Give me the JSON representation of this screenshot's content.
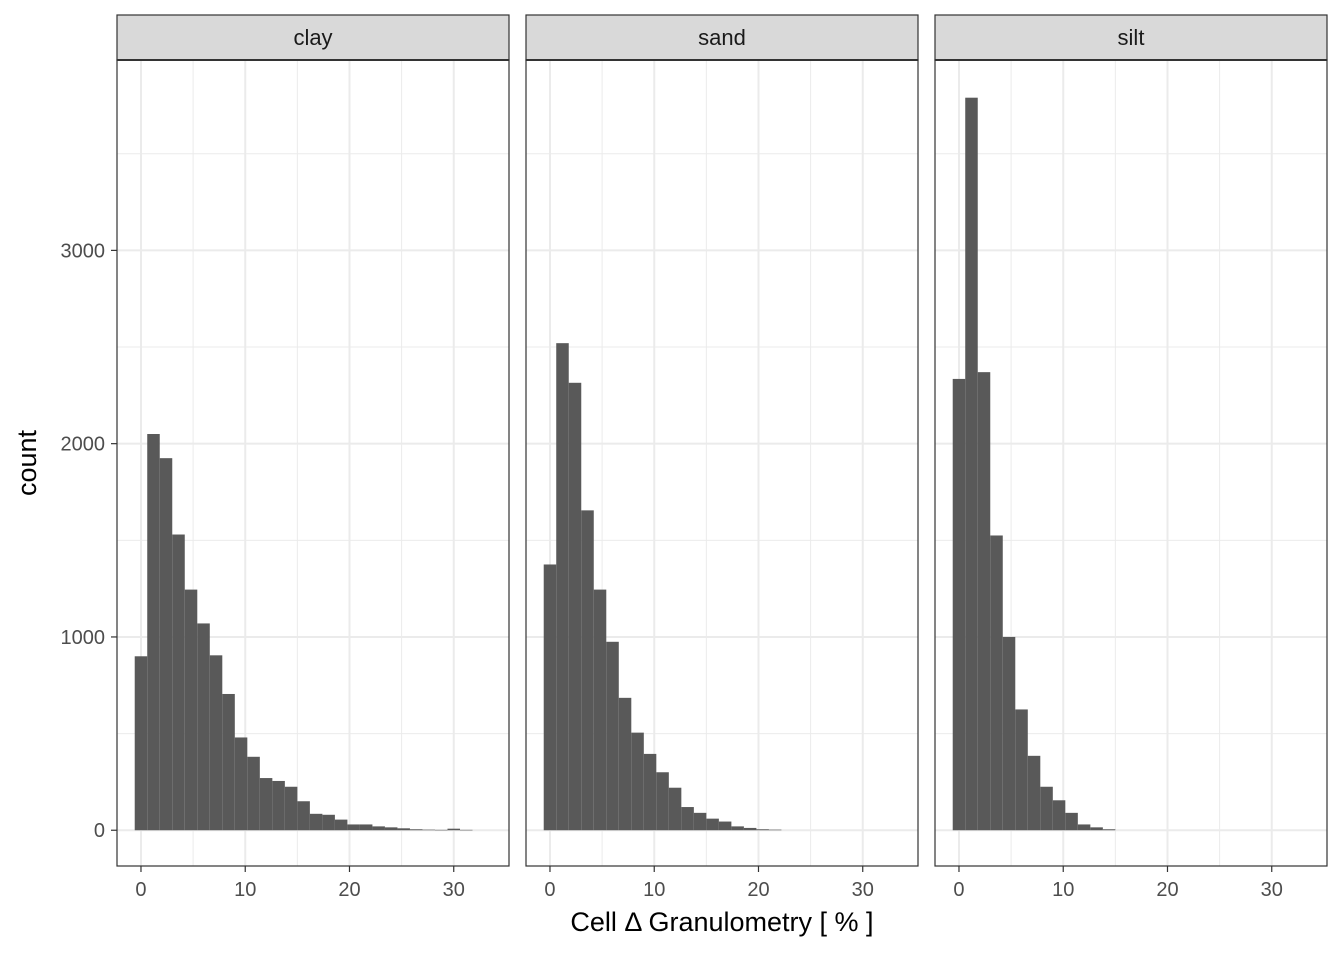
{
  "chart_data": {
    "type": "bar",
    "subtype": "faceted-histogram",
    "xlabel": "Cell Δ Granulometry [ % ]",
    "ylabel": "count",
    "xlim": [
      -2.3,
      35.3
    ],
    "ylim": [
      -185,
      3985
    ],
    "x_ticks": [
      0,
      10,
      20,
      30
    ],
    "y_ticks": [
      0,
      1000,
      2000,
      3000
    ],
    "bin_width": 1.2,
    "grid": true,
    "colors": {
      "bar": "#595959",
      "strip_fill": "#d9d9d9",
      "grid": "#ebebeb",
      "panel_border": "#333333"
    },
    "panels": [
      {
        "name": "clay",
        "bins": [
          {
            "x0": -0.6,
            "x1": 0.6,
            "count": 900
          },
          {
            "x0": 0.6,
            "x1": 1.8,
            "count": 2050
          },
          {
            "x0": 1.8,
            "x1": 3.0,
            "count": 1925
          },
          {
            "x0": 3.0,
            "x1": 4.2,
            "count": 1530
          },
          {
            "x0": 4.2,
            "x1": 5.4,
            "count": 1245
          },
          {
            "x0": 5.4,
            "x1": 6.6,
            "count": 1070
          },
          {
            "x0": 6.6,
            "x1": 7.8,
            "count": 905
          },
          {
            "x0": 7.8,
            "x1": 9.0,
            "count": 705
          },
          {
            "x0": 9.0,
            "x1": 10.2,
            "count": 480
          },
          {
            "x0": 10.2,
            "x1": 11.4,
            "count": 380
          },
          {
            "x0": 11.4,
            "x1": 12.6,
            "count": 270
          },
          {
            "x0": 12.6,
            "x1": 13.8,
            "count": 255
          },
          {
            "x0": 13.8,
            "x1": 15.0,
            "count": 225
          },
          {
            "x0": 15.0,
            "x1": 16.2,
            "count": 150
          },
          {
            "x0": 16.2,
            "x1": 17.4,
            "count": 85
          },
          {
            "x0": 17.4,
            "x1": 18.6,
            "count": 80
          },
          {
            "x0": 18.6,
            "x1": 19.8,
            "count": 55
          },
          {
            "x0": 19.8,
            "x1": 21.0,
            "count": 30
          },
          {
            "x0": 21.0,
            "x1": 22.2,
            "count": 30
          },
          {
            "x0": 22.2,
            "x1": 23.4,
            "count": 20
          },
          {
            "x0": 23.4,
            "x1": 24.6,
            "count": 15
          },
          {
            "x0": 24.6,
            "x1": 25.8,
            "count": 10
          },
          {
            "x0": 25.8,
            "x1": 27.0,
            "count": 5
          },
          {
            "x0": 27.0,
            "x1": 28.2,
            "count": 3
          },
          {
            "x0": 28.2,
            "x1": 29.4,
            "count": 2
          },
          {
            "x0": 29.4,
            "x1": 30.6,
            "count": 8
          },
          {
            "x0": 30.6,
            "x1": 31.8,
            "count": 2
          }
        ]
      },
      {
        "name": "sand",
        "bins": [
          {
            "x0": -0.6,
            "x1": 0.6,
            "count": 1375
          },
          {
            "x0": 0.6,
            "x1": 1.8,
            "count": 2520
          },
          {
            "x0": 1.8,
            "x1": 3.0,
            "count": 2315
          },
          {
            "x0": 3.0,
            "x1": 4.2,
            "count": 1655
          },
          {
            "x0": 4.2,
            "x1": 5.4,
            "count": 1245
          },
          {
            "x0": 5.4,
            "x1": 6.6,
            "count": 975
          },
          {
            "x0": 6.6,
            "x1": 7.8,
            "count": 685
          },
          {
            "x0": 7.8,
            "x1": 9.0,
            "count": 505
          },
          {
            "x0": 9.0,
            "x1": 10.2,
            "count": 395
          },
          {
            "x0": 10.2,
            "x1": 11.4,
            "count": 300
          },
          {
            "x0": 11.4,
            "x1": 12.6,
            "count": 220
          },
          {
            "x0": 12.6,
            "x1": 13.8,
            "count": 120
          },
          {
            "x0": 13.8,
            "x1": 15.0,
            "count": 90
          },
          {
            "x0": 15.0,
            "x1": 16.2,
            "count": 60
          },
          {
            "x0": 16.2,
            "x1": 17.4,
            "count": 45
          },
          {
            "x0": 17.4,
            "x1": 18.6,
            "count": 20
          },
          {
            "x0": 18.6,
            "x1": 19.8,
            "count": 12
          },
          {
            "x0": 19.8,
            "x1": 21.0,
            "count": 5
          },
          {
            "x0": 21.0,
            "x1": 22.2,
            "count": 3
          }
        ]
      },
      {
        "name": "silt",
        "bins": [
          {
            "x0": -0.6,
            "x1": 0.6,
            "count": 2335
          },
          {
            "x0": 0.6,
            "x1": 1.8,
            "count": 3790
          },
          {
            "x0": 1.8,
            "x1": 3.0,
            "count": 2370
          },
          {
            "x0": 3.0,
            "x1": 4.2,
            "count": 1525
          },
          {
            "x0": 4.2,
            "x1": 5.4,
            "count": 1000
          },
          {
            "x0": 5.4,
            "x1": 6.6,
            "count": 625
          },
          {
            "x0": 6.6,
            "x1": 7.8,
            "count": 385
          },
          {
            "x0": 7.8,
            "x1": 9.0,
            "count": 225
          },
          {
            "x0": 9.0,
            "x1": 10.2,
            "count": 155
          },
          {
            "x0": 10.2,
            "x1": 11.4,
            "count": 90
          },
          {
            "x0": 11.4,
            "x1": 12.6,
            "count": 30
          },
          {
            "x0": 12.6,
            "x1": 13.8,
            "count": 15
          },
          {
            "x0": 13.8,
            "x1": 15.0,
            "count": 5
          }
        ]
      }
    ]
  }
}
